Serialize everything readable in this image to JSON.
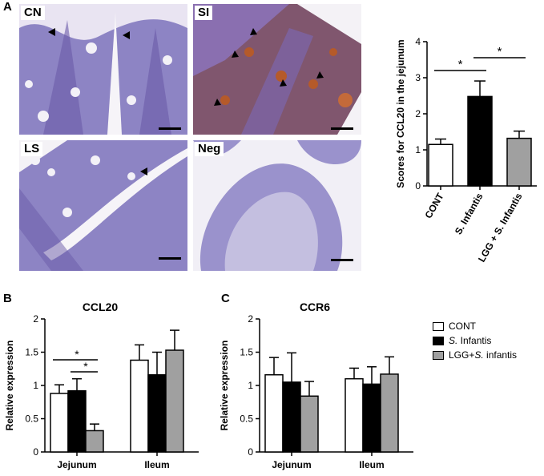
{
  "panels": {
    "a": "A",
    "b": "B",
    "c": "C"
  },
  "micrographs": [
    {
      "label": "CN",
      "stain": "#7a6cc0"
    },
    {
      "label": "SI",
      "stain": "#8a5a6a"
    },
    {
      "label": "LS",
      "stain": "#7a6cc0"
    },
    {
      "label": "Neg",
      "stain": "#8e86c8"
    }
  ],
  "legend": {
    "items": [
      {
        "pre": "",
        "italic": "",
        "post": "CONT",
        "color": "#ffffff"
      },
      {
        "pre": "",
        "italic": "S.",
        "post": " Infantis",
        "color": "#000000"
      },
      {
        "pre": "LGG+",
        "italic": "S.",
        "post": " infantis",
        "color": "#a0a0a0"
      }
    ]
  },
  "chart_data": [
    {
      "type": "bar",
      "title": "",
      "ylabel": "Scores for CCL20 in the jejunum",
      "ylim": [
        0,
        4
      ],
      "yticks": [
        "0",
        "1",
        "2",
        "3",
        "4"
      ],
      "categories": [
        "CONT",
        "S. Infantis",
        "LGG + S. Infantis"
      ],
      "values": [
        1.15,
        2.48,
        1.32
      ],
      "errors": [
        0.15,
        0.43,
        0.2
      ],
      "colors": [
        "#ffffff",
        "#000000",
        "#a0a0a0"
      ],
      "significance": [
        {
          "from": 0,
          "to": 1,
          "label": "*"
        },
        {
          "from": 1,
          "to": 2,
          "label": "*"
        }
      ]
    },
    {
      "type": "bar",
      "title": "CCL20",
      "ylabel": "Relative expression",
      "ylim": [
        0,
        2
      ],
      "yticks": [
        "0",
        "0.5",
        "1",
        "1.5",
        "2"
      ],
      "categories": [
        "Jejunum",
        "Ileum"
      ],
      "series": [
        {
          "name": "CONT",
          "values": [
            0.88,
            1.38
          ],
          "errors": [
            0.13,
            0.23
          ]
        },
        {
          "name": "S. Infantis",
          "values": [
            0.92,
            1.16
          ],
          "errors": [
            0.18,
            0.34
          ]
        },
        {
          "name": "LGG+S. infantis",
          "values": [
            0.32,
            1.53
          ],
          "errors": [
            0.1,
            0.3
          ]
        }
      ],
      "significance": [
        {
          "group": 0,
          "from": 0,
          "to": 2,
          "label": "*"
        },
        {
          "group": 0,
          "from": 1,
          "to": 2,
          "label": "*"
        }
      ]
    },
    {
      "type": "bar",
      "title": "CCR6",
      "ylabel": "Relative expression",
      "ylim": [
        0,
        2
      ],
      "yticks": [
        "0",
        "0.5",
        "1",
        "1.5",
        "2"
      ],
      "categories": [
        "Jejunum",
        "Ileum"
      ],
      "series": [
        {
          "name": "CONT",
          "values": [
            1.16,
            1.1
          ],
          "errors": [
            0.26,
            0.16
          ]
        },
        {
          "name": "S. Infantis",
          "values": [
            1.05,
            1.02
          ],
          "errors": [
            0.44,
            0.26
          ]
        },
        {
          "name": "LGG+S. infantis",
          "values": [
            0.84,
            1.17
          ],
          "errors": [
            0.22,
            0.26
          ]
        }
      ],
      "significance": []
    }
  ]
}
